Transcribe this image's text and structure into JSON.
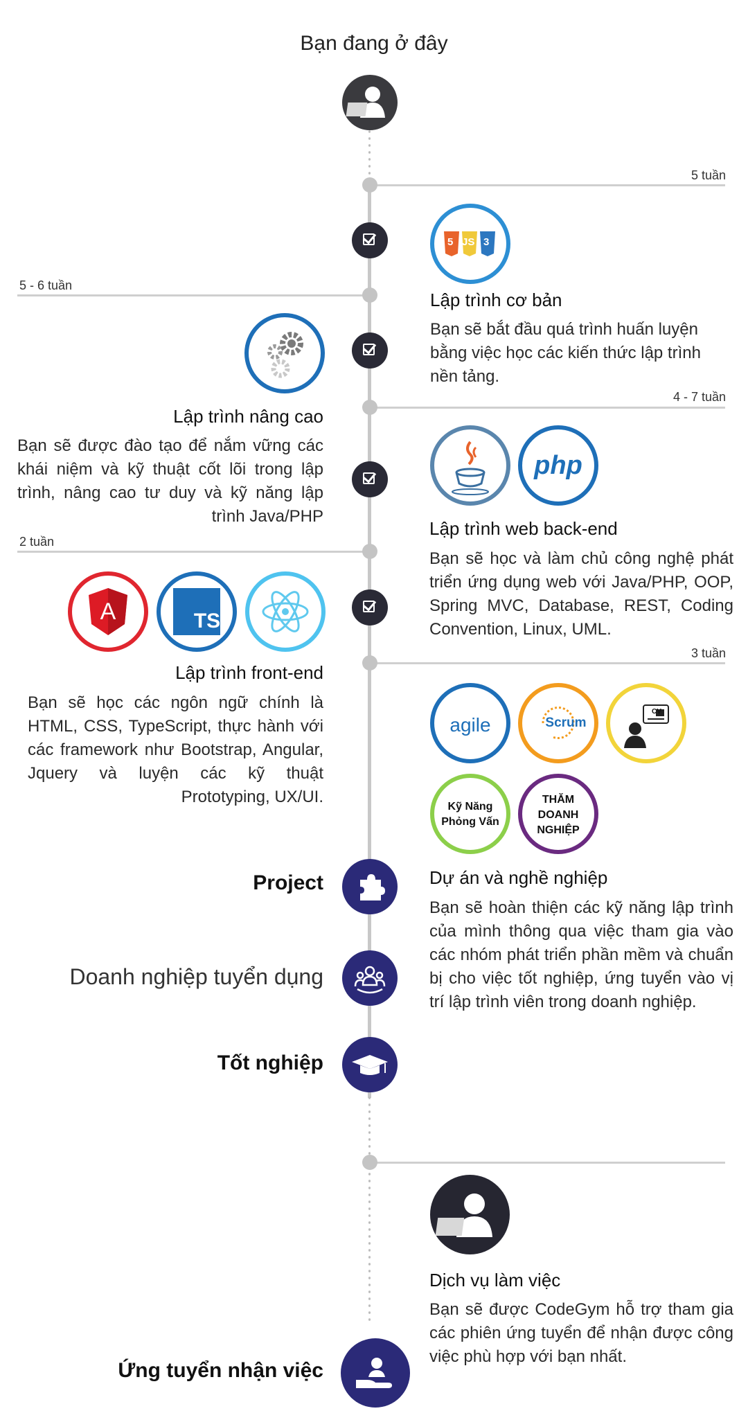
{
  "header": {
    "you_are_here": "Bạn đang ở đây"
  },
  "weeks": {
    "basic": "5 tuần",
    "advanced": "5 - 6 tuần",
    "backend": "4 - 7 tuần",
    "frontend": "2 tuần",
    "project": "3 tuần"
  },
  "stages": {
    "basic": {
      "title": "Lập trình cơ bản",
      "desc": "Bạn sẽ bắt đầu quá trình huấn luyện bằng việc học các kiến thức lập trình nền tảng."
    },
    "advanced": {
      "title": "Lập trình nâng cao",
      "desc": "Bạn sẽ được đào tạo để nắm vững các khái niệm và kỹ thuật cốt lõi trong lập trình, nâng cao tư duy và kỹ năng lập trình Java/PHP"
    },
    "backend": {
      "title": "Lập trình web back-end",
      "desc": "Bạn sẽ học và làm chủ công nghệ phát triển ứng dụng web với Java/PHP, OOP, Spring MVC, Database, REST, Coding Convention, Linux, UML."
    },
    "frontend": {
      "title": "Lập trình front-end",
      "desc": "Bạn sẽ học các ngôn ngữ chính là HTML, CSS, TypeScript, thực hành với các framework như Bootstrap, Angular, Jquery và luyện các kỹ thuật Prototyping, UX/UI."
    },
    "career": {
      "title": "Dự án và nghề nghiệp",
      "desc": "Bạn sẽ hoàn thiện các kỹ năng lập trình của mình thông qua việc tham gia vào các nhóm phát triển phần mềm và chuẩn bị cho việc tốt nghiệp, ứng tuyển vào vị trí lập trình viên trong doanh nghiệp."
    },
    "service": {
      "title": "Dịch vụ làm việc",
      "desc": "Bạn sẽ được CodeGym hỗ trợ tham gia các phiên ứng tuyển để nhận được công việc phù hợp với bạn nhất."
    }
  },
  "icons": {
    "html_logos": [
      "5",
      "JS",
      "3"
    ],
    "php": "php",
    "ts": "TS",
    "angular": "A",
    "agile": "agile",
    "scrum": "Scrum",
    "interview": [
      "Kỹ Năng",
      "Phỏng Vấn"
    ],
    "visit": [
      "THĂM",
      "DOANH",
      "NGHIỆP"
    ],
    "cv": "CV"
  },
  "milestones": {
    "project": "Project",
    "recruit": "Doanh nghiệp tuyển dụng",
    "graduate": "Tốt nghiệp",
    "apply": "Ứng tuyển nhận việc"
  },
  "colors": {
    "navy": "#2b2a78",
    "dark": "#2a2a36",
    "html_ring": "#2d8fd4",
    "gear_ring": "#1e6fb8",
    "java_ring": "#5a86ad",
    "php_ring": "#1e6fb8",
    "angular_ring": "#e0262f",
    "ts_ring": "#1e6fb8",
    "react_ring": "#4fc3ef",
    "agile_ring": "#1e6fb8",
    "scrum_ring": "#f39c1e",
    "cv_ring": "#f2d43a",
    "interview_ring": "#8ccf4a",
    "visit_ring": "#6a2a80"
  }
}
